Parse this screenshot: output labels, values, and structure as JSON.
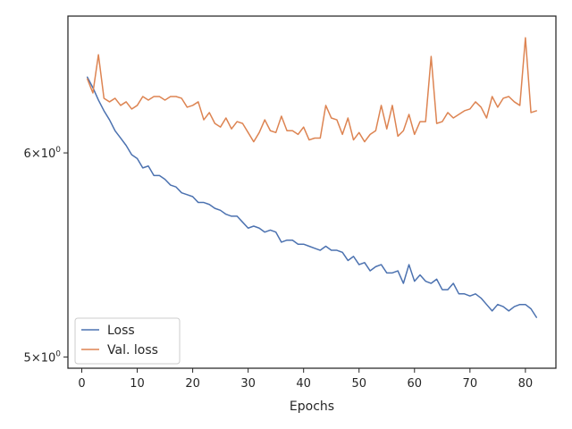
{
  "chart_data": {
    "type": "line",
    "xlabel": "Epochs",
    "ylabel": "",
    "yscale": "log",
    "xlim": [
      -2.5,
      85.5
    ],
    "ylim": [
      4.95,
      6.78
    ],
    "xticks": [
      {
        "value": 0,
        "label": "0"
      },
      {
        "value": 10,
        "label": "10"
      },
      {
        "value": 20,
        "label": "20"
      },
      {
        "value": 30,
        "label": "30"
      },
      {
        "value": 40,
        "label": "40"
      },
      {
        "value": 50,
        "label": "50"
      },
      {
        "value": 60,
        "label": "60"
      },
      {
        "value": 70,
        "label": "70"
      },
      {
        "value": 80,
        "label": "80"
      }
    ],
    "yticks": [
      {
        "value": 5,
        "label_base": "5",
        "label_mult": "×",
        "label_pow": "10",
        "label_exp": "0"
      },
      {
        "value": 6,
        "label_base": "6",
        "label_mult": "×",
        "label_pow": "10",
        "label_exp": "0"
      }
    ],
    "grid": false,
    "legend_position": "lower-left",
    "x": [
      1,
      2,
      3,
      4,
      5,
      6,
      7,
      8,
      9,
      10,
      11,
      12,
      13,
      14,
      15,
      16,
      17,
      18,
      19,
      20,
      21,
      22,
      23,
      24,
      25,
      26,
      27,
      28,
      29,
      30,
      31,
      32,
      33,
      34,
      35,
      36,
      37,
      38,
      39,
      40,
      41,
      42,
      43,
      44,
      45,
      46,
      47,
      48,
      49,
      50,
      51,
      52,
      53,
      54,
      55,
      56,
      57,
      58,
      59,
      60,
      61,
      62,
      63,
      64,
      65,
      66,
      67,
      68,
      69,
      70,
      71,
      72,
      73,
      74,
      75,
      76,
      77,
      78,
      79,
      80,
      81,
      82
    ],
    "series": [
      {
        "name": "Loss",
        "color": "#4c72b0",
        "values": [
          6.42,
          6.36,
          6.29,
          6.23,
          6.18,
          6.12,
          6.08,
          6.04,
          5.99,
          5.97,
          5.92,
          5.93,
          5.88,
          5.88,
          5.86,
          5.83,
          5.82,
          5.79,
          5.78,
          5.77,
          5.74,
          5.74,
          5.73,
          5.71,
          5.7,
          5.68,
          5.67,
          5.67,
          5.64,
          5.61,
          5.62,
          5.61,
          5.59,
          5.6,
          5.59,
          5.54,
          5.55,
          5.55,
          5.53,
          5.53,
          5.52,
          5.51,
          5.5,
          5.52,
          5.5,
          5.5,
          5.49,
          5.45,
          5.47,
          5.43,
          5.44,
          5.4,
          5.42,
          5.43,
          5.39,
          5.39,
          5.4,
          5.34,
          5.43,
          5.35,
          5.38,
          5.35,
          5.34,
          5.36,
          5.31,
          5.31,
          5.34,
          5.29,
          5.29,
          5.28,
          5.29,
          5.27,
          5.24,
          5.21,
          5.24,
          5.23,
          5.21,
          5.23,
          5.24,
          5.24,
          5.22,
          5.18
        ]
      },
      {
        "name": "Val. loss",
        "color": "#dd8452",
        "values": [
          6.41,
          6.33,
          6.55,
          6.3,
          6.28,
          6.3,
          6.26,
          6.28,
          6.24,
          6.26,
          6.31,
          6.29,
          6.31,
          6.31,
          6.29,
          6.31,
          6.31,
          6.3,
          6.25,
          6.26,
          6.28,
          6.18,
          6.22,
          6.16,
          6.14,
          6.19,
          6.13,
          6.17,
          6.16,
          6.11,
          6.06,
          6.11,
          6.18,
          6.12,
          6.11,
          6.2,
          6.12,
          6.12,
          6.1,
          6.14,
          6.07,
          6.08,
          6.08,
          6.26,
          6.19,
          6.18,
          6.1,
          6.19,
          6.07,
          6.11,
          6.06,
          6.1,
          6.12,
          6.26,
          6.13,
          6.26,
          6.09,
          6.12,
          6.21,
          6.1,
          6.17,
          6.17,
          6.54,
          6.16,
          6.17,
          6.22,
          6.19,
          6.21,
          6.23,
          6.24,
          6.28,
          6.25,
          6.19,
          6.31,
          6.25,
          6.3,
          6.31,
          6.28,
          6.26,
          6.65,
          6.22,
          6.23
        ]
      }
    ]
  }
}
